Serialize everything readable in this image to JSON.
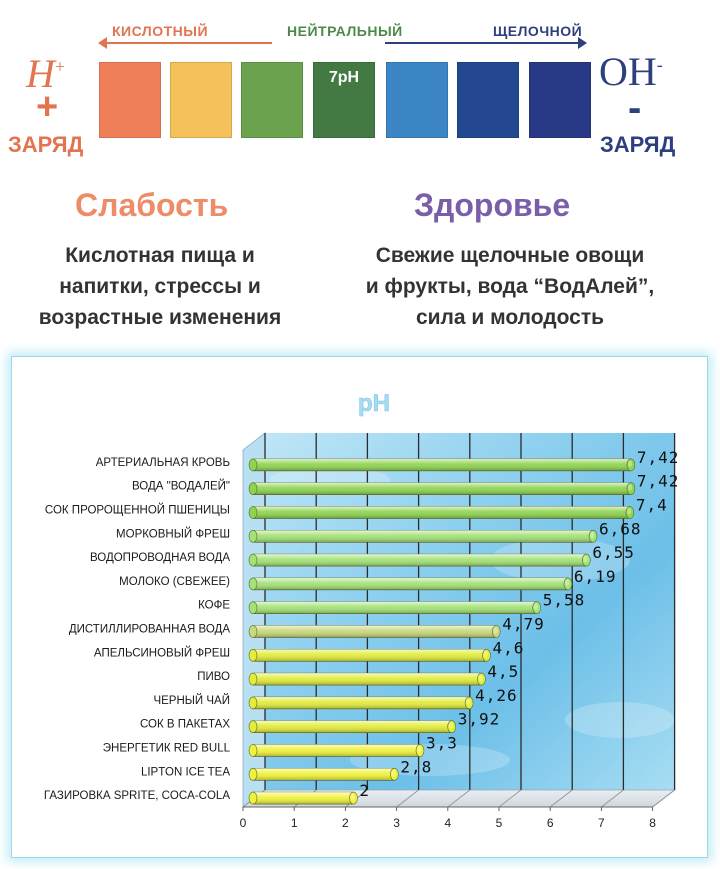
{
  "scale": {
    "acid_label": "КИСЛОТНЫЙ",
    "neutral_label": "НЕЙТРАЛЬНЫЙ",
    "alkaline_label": "ЩЕЛОЧНОЙ",
    "neutral_swatch_label": "7pH",
    "swatch_colors": [
      "#ee7f59",
      "#f4c15a",
      "#6aa24e",
      "#437a43",
      "#3d86c6",
      "#23488f",
      "#283a86"
    ],
    "left_ion": "H",
    "left_ion_sup": "+",
    "left_sign": "+",
    "left_charge": "ЗАРЯД",
    "right_ion": "OH",
    "right_ion_sup": "-",
    "right_sign": "-",
    "right_charge": "ЗАРЯД"
  },
  "captions": {
    "weak_title": "Слабость",
    "weak_lines": [
      "Кислотная пища и",
      "напитки, стрессы и",
      "возрастные изменения"
    ],
    "health_title": "Здоровье",
    "health_lines": [
      "Свежие щелочные овощи",
      "и фрукты, вода “ВодАлей”,",
      "сила и молодость"
    ]
  },
  "chart_data": {
    "type": "bar",
    "orientation": "horizontal",
    "title": "pH",
    "categories": [
      "АРТЕРИАЛЬНАЯ КРОВЬ",
      "ВОДА \"ВОДАЛЕЙ\"",
      "СОК ПРОРОЩЕННОЙ ПШЕНИЦЫ",
      "МОРКОВНЫЙ ФРЕШ",
      "ВОДОПРОВОДНАЯ ВОДА",
      "МОЛОКО (СВЕЖЕЕ)",
      "КОФЕ",
      "ДИСТИЛЛИРОВАННАЯ ВОДА",
      "АПЕЛЬСИНОВЫЙ ФРЕШ",
      "ПИВО",
      "ЧЕРНЫЙ ЧАЙ",
      "СОК В ПАКЕТАХ",
      "ЭНЕРГЕТИК RED BULL",
      "LIPTON ICE TEA",
      "ГАЗИРОВКА SPRITE, COCA-COLA"
    ],
    "values": [
      7.42,
      7.42,
      7.4,
      6.68,
      6.55,
      6.19,
      5.58,
      4.79,
      4.6,
      4.5,
      4.26,
      3.92,
      3.3,
      2.8,
      2
    ],
    "value_labels": [
      "7,42",
      "7,42",
      "7,4",
      "6,68",
      "6,55",
      "6,19",
      "5,58",
      "4,79",
      "4,6",
      "4,5",
      "4,26",
      "3,92",
      "3,3",
      "2,8",
      "2"
    ],
    "bar_colors": [
      "#8fd451",
      "#8fd451",
      "#8fd451",
      "#a3e276",
      "#a3e276",
      "#a3e276",
      "#a3e276",
      "#c8d87a",
      "#e2ec3a",
      "#e2ec3a",
      "#e2ec3a",
      "#e2ec3a",
      "#eff23c",
      "#eff23c",
      "#eff23c"
    ],
    "xlim": [
      0,
      8
    ],
    "x_ticks": [
      "0",
      "1",
      "2",
      "3",
      "4",
      "5",
      "6",
      "7",
      "8"
    ],
    "grid": true,
    "legend": "none"
  }
}
